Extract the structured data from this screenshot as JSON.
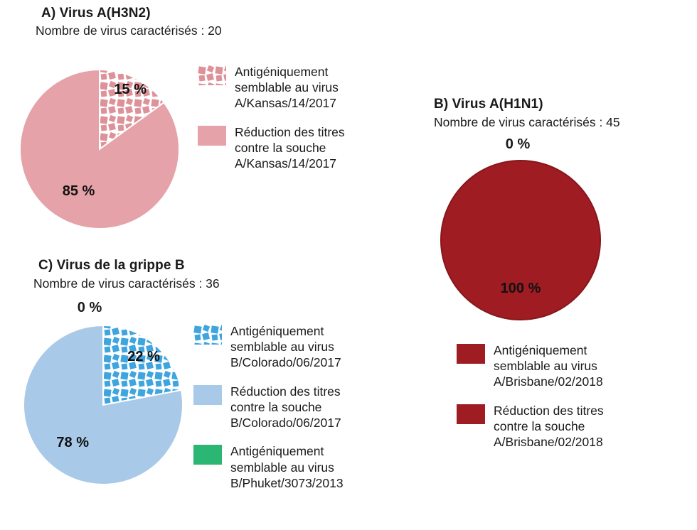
{
  "figure": {
    "background": "#ffffff",
    "text_color": "#1a1a1a"
  },
  "chart_data": [
    {
      "type": "pie",
      "id": "a",
      "title": "A) Virus A(H3N2)",
      "subtitle": "Nombre de virus caractérisés : 20",
      "legend_position": "right",
      "slices": [
        {
          "label": "Antigéniquement semblable au virus A/Kansas/14/2017",
          "value": 15,
          "pct_label": "15 %",
          "color": "#dd9198",
          "pattern": true
        },
        {
          "label": "Réduction des titres contre la souche A/Kansas/14/2017",
          "value": 85,
          "pct_label": "85 %",
          "color": "#e5a2a8",
          "pattern": false
        }
      ]
    },
    {
      "type": "pie",
      "id": "b",
      "title": "B) Virus A(H1N1)",
      "subtitle": "Nombre de virus caractérisés :  45",
      "legend_position": "below",
      "slices": [
        {
          "label": "Antigéniquement semblable au virus A/Brisbane/02/2018",
          "value": 0,
          "pct_label": "0 %",
          "color": "#9e1c22",
          "pattern": false
        },
        {
          "label": "Réduction des titres contre la souche A/Brisbane/02/2018",
          "value": 100,
          "pct_label": "100 %",
          "color": "#9e1c22",
          "pattern": false
        }
      ]
    },
    {
      "type": "pie",
      "id": "c",
      "title": "C) Virus de la grippe B",
      "subtitle": "Nombre de virus caractérisés : 36",
      "legend_position": "right",
      "slices": [
        {
          "label": "Antigéniquement semblable au virus B/Colorado/06/2017",
          "value": 22,
          "pct_label": "22 %",
          "color": "#3fa5de",
          "pattern": true
        },
        {
          "label": "Réduction des titres contre la souche B/Colorado/06/2017",
          "value": 78,
          "pct_label": "78 %",
          "color": "#a9c9e8",
          "pattern": false
        },
        {
          "label": "Antigéniquement semblable au virus B/Phuket/3073/2013",
          "value": 0,
          "pct_label": "0 %",
          "color": "#2bb673",
          "pattern": false
        }
      ]
    }
  ]
}
